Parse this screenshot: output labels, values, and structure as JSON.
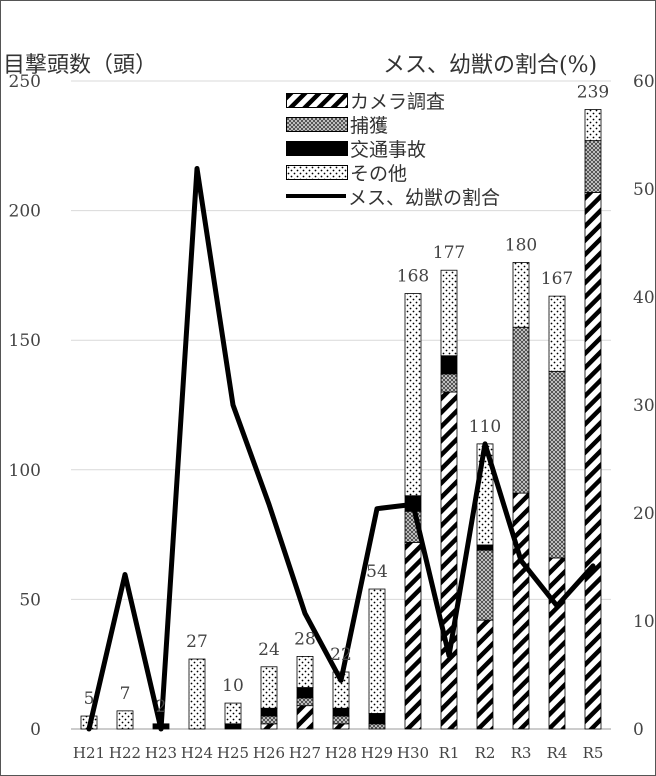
{
  "chart_data": {
    "type": "bar",
    "stacked": true,
    "left_axis_title": "目撃頭数（頭）",
    "right_axis_title": "メス、幼獣の割合(%)",
    "categories": [
      "H21",
      "H22",
      "H23",
      "H24",
      "H25",
      "H26",
      "H27",
      "H28",
      "H29",
      "H30",
      "R1",
      "R2",
      "R3",
      "R4",
      "R5"
    ],
    "totals": [
      5,
      7,
      2,
      27,
      10,
      24,
      28,
      22,
      54,
      168,
      177,
      110,
      180,
      167,
      239
    ],
    "y_left_ticks": [
      0,
      50,
      100,
      150,
      200,
      250
    ],
    "y_right_ticks": [
      0,
      10,
      20,
      30,
      40,
      50,
      60
    ],
    "ylim": [
      0,
      250
    ],
    "ylim_right": [
      0,
      60
    ],
    "grid": true,
    "series": [
      {
        "name": "カメラ調査",
        "values": [
          0,
          0,
          0,
          0,
          0,
          2,
          9,
          2,
          0,
          72,
          130,
          42,
          91,
          66,
          207
        ]
      },
      {
        "name": "捕獲",
        "values": [
          0,
          0,
          0,
          0,
          0,
          3,
          3,
          3,
          2,
          12,
          7,
          27,
          64,
          72,
          20
        ]
      },
      {
        "name": "交通事故",
        "values": [
          0,
          0,
          2,
          0,
          2,
          3,
          4,
          3,
          4,
          6,
          7,
          2,
          0,
          0,
          0
        ]
      },
      {
        "name": "その他",
        "values": [
          5,
          7,
          0,
          27,
          8,
          16,
          12,
          14,
          48,
          78,
          33,
          39,
          25,
          29,
          12
        ]
      }
    ],
    "line_series": {
      "name": "メス、幼獣の割合",
      "axis": "right",
      "values": [
        0,
        14.3,
        0,
        51.9,
        30,
        20.8,
        10.7,
        4.5,
        20.4,
        20.8,
        6.8,
        26.4,
        15.6,
        11.4,
        15.1
      ]
    },
    "colors": {
      "axis_text": "#444444",
      "grid": "#d9d9d9",
      "bar_stroke": "#000000",
      "line": "#000000"
    }
  }
}
